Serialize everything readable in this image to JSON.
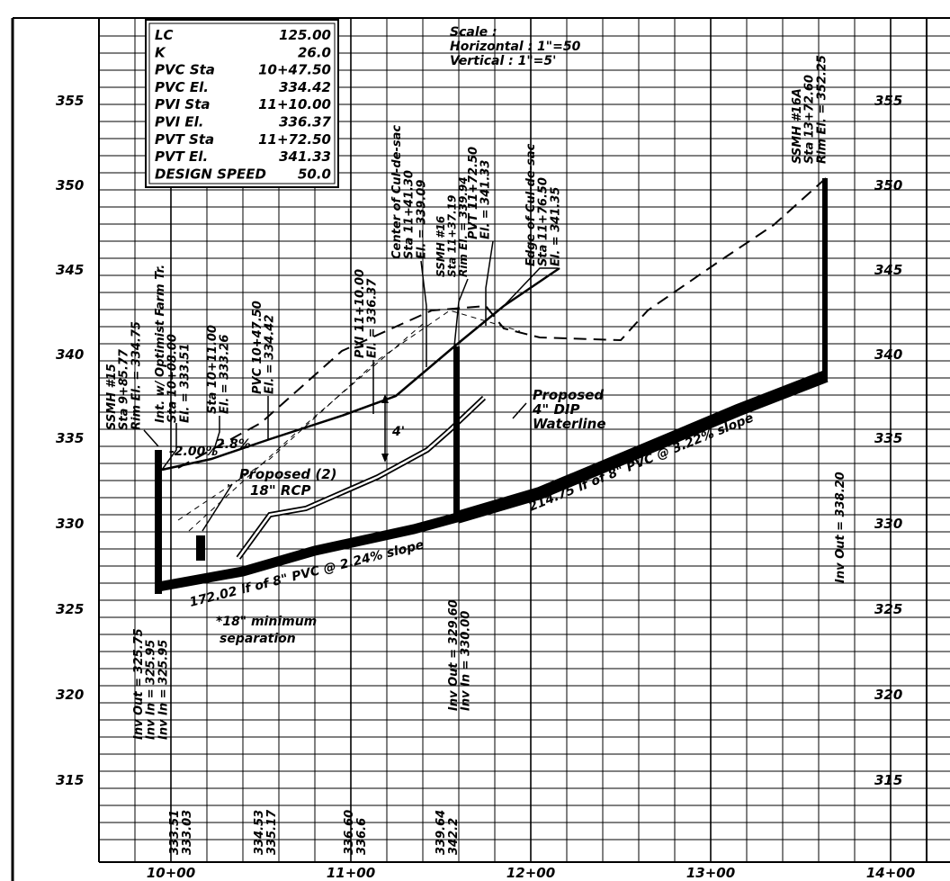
{
  "design_table": [
    {
      "label": "LC",
      "value": "125.00"
    },
    {
      "label": "K",
      "value": "26.0"
    },
    {
      "label": "PVC Sta",
      "value": "10+47.50"
    },
    {
      "label": "PVC El.",
      "value": "334.42"
    },
    {
      "label": "PVI Sta",
      "value": "11+10.00"
    },
    {
      "label": "PVI El.",
      "value": "336.37"
    },
    {
      "label": "PVT Sta",
      "value": "11+72.50"
    },
    {
      "label": "PVT El.",
      "value": "341.33"
    },
    {
      "label": "DESIGN SPEED",
      "value": "50.0"
    }
  ],
  "scale": {
    "line1": "Scale :",
    "line2": "Horizontal : 1\"=50",
    "line3": "Vertical : 1\"=5'"
  },
  "elevation_ticks": [
    "355",
    "350",
    "345",
    "340",
    "335",
    "330",
    "325",
    "320",
    "315"
  ],
  "station_ticks": [
    "10+00",
    "11+00",
    "12+00",
    "13+00",
    "14+00"
  ],
  "bottom_elevations": [
    {
      "a": "333.51",
      "b": "333.03"
    },
    {
      "a": "334.53",
      "b": "335.17"
    },
    {
      "a": "336.60",
      "b": "336.6"
    },
    {
      "a": "339.64",
      "b": "342.2"
    }
  ],
  "callouts": {
    "ssmh15": [
      "SSMH #15",
      "Sta 9+85.77",
      "Rim El. = 334.75"
    ],
    "int_optimist": [
      "Int. w/ Optimist Farm Tr.",
      "Sta 10+08.00",
      "El. = 333.51"
    ],
    "sta_10_11": [
      "Sta 10+11.00",
      "El. = 333.26"
    ],
    "pvc": [
      "PVC 10+47.50",
      "El. = 334.42"
    ],
    "pvi": [
      "PVI 11+10.00",
      "El. = 336.37"
    ],
    "center_cul": [
      "Center of Cul-de-sac",
      "Sta 11+41.30",
      "El. = 339.09"
    ],
    "ssmh16": [
      "SSMH #16",
      "Sta 11+37.19",
      "Rim El. = 339.94"
    ],
    "pvt": [
      "PVT 11+72.50",
      "El. = 341.33"
    ],
    "edge_cul": [
      "Edge of Cul-de-sac",
      "Sta 11+76.50",
      "El. = 341.35"
    ],
    "ssmh16a": [
      "SSMH #16A",
      "Sta 13+72.60",
      "Rim El. = 352.25"
    ],
    "grade_pct": "-2.00%",
    "grade_pct2": "2.8%",
    "four_ft": "4'",
    "rcp": [
      "Proposed (2)",
      "18\" RCP"
    ],
    "waterline": [
      "Proposed",
      "4\" DIP",
      "Waterline"
    ],
    "pipe1": "172.02 lf of 8\" PVC @ 2.24% slope",
    "pipe2": "214.75 lf of 8\" PVC @ 3.22% slope",
    "separation": [
      "*18\" minimum",
      "separation"
    ],
    "inv15": [
      "Inv Out = 325.75",
      "Inv In = 325.95",
      "Inv In = 325.95"
    ],
    "inv16": [
      "Inv Out = 329.60",
      "Inv In = 330.00"
    ],
    "inv16a": "Inv Out = 338.20"
  }
}
